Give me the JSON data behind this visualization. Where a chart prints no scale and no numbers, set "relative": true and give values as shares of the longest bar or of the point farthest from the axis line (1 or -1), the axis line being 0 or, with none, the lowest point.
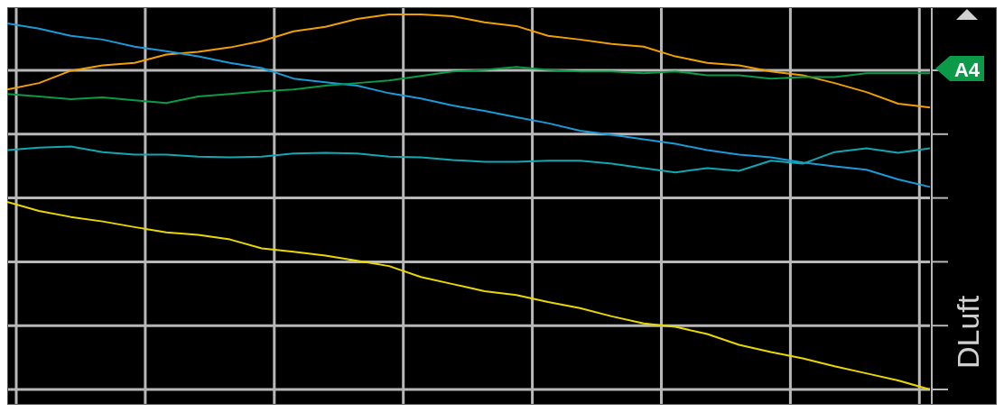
{
  "chart_data": {
    "type": "line",
    "relative": true,
    "grid": true,
    "ylabel": "DLuft",
    "annotations": [
      "A4"
    ],
    "categories": [
      null,
      null,
      null,
      null,
      null,
      null,
      null,
      null,
      null,
      null,
      null,
      null,
      null,
      null,
      null,
      null,
      null,
      null,
      null,
      null,
      null,
      null,
      null,
      null,
      null,
      null,
      null,
      null,
      null,
      null
    ],
    "series": [
      {
        "color": "#f0a000",
        "values": [
          0.8,
          0.817,
          0.85,
          0.864,
          0.871,
          0.893,
          0.9,
          0.912,
          0.929,
          0.955,
          0.967,
          0.988,
          1,
          1,
          0.995,
          0.979,
          0.969,
          0.943,
          0.933,
          0.921,
          0.914,
          0.888,
          0.871,
          0.864,
          0.848,
          0.838,
          0.817,
          0.793,
          0.762,
          0.752
        ]
      },
      {
        "color": "#1a9ad6",
        "values": [
          0.976,
          0.962,
          0.943,
          0.933,
          0.914,
          0.902,
          0.888,
          0.871,
          0.857,
          0.829,
          0.819,
          0.81,
          0.79,
          0.776,
          0.757,
          0.743,
          0.726,
          0.71,
          0.69,
          0.679,
          0.667,
          0.655,
          0.638,
          0.626,
          0.619,
          0.605,
          0.595,
          0.586,
          0.56,
          0.54
        ]
      },
      {
        "color": "#0a9a48",
        "values": [
          0.788,
          0.781,
          0.774,
          0.779,
          0.771,
          0.764,
          0.781,
          0.788,
          0.795,
          0.8,
          0.81,
          0.817,
          0.824,
          0.836,
          0.848,
          0.852,
          0.86,
          0.852,
          0.848,
          0.848,
          0.843,
          0.848,
          0.838,
          0.838,
          0.829,
          0.833,
          0.833,
          0.843,
          0.843,
          0.843
        ]
      },
      {
        "color": "#10a8b0",
        "values": [
          0.638,
          0.645,
          0.648,
          0.633,
          0.626,
          0.626,
          0.621,
          0.619,
          0.621,
          0.629,
          0.631,
          0.629,
          0.621,
          0.619,
          0.612,
          0.607,
          0.607,
          0.61,
          0.61,
          0.602,
          0.59,
          0.579,
          0.59,
          0.583,
          0.61,
          0.602,
          0.633,
          0.643,
          0.631,
          0.643
        ]
      },
      {
        "color": "#e8d800",
        "values": [
          0.5,
          0.476,
          0.46,
          0.448,
          0.433,
          0.419,
          0.412,
          0.4,
          0.376,
          0.367,
          0.357,
          0.343,
          0.329,
          0.3,
          0.281,
          0.262,
          0.252,
          0.233,
          0.217,
          0.195,
          0.176,
          0.167,
          0.148,
          0.119,
          0.1,
          0.083,
          0.062,
          0.043,
          0.024,
          0
        ]
      }
    ]
  }
}
